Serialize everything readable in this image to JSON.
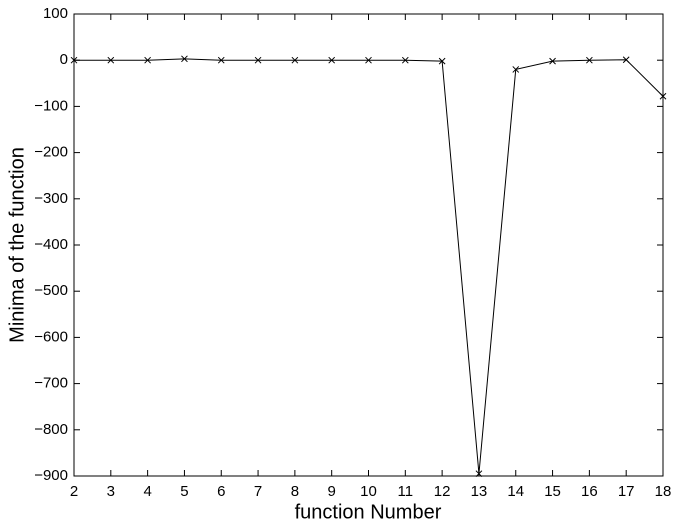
{
  "chart_data": {
    "type": "line",
    "x_label": "function Number",
    "y_label": "Minima of the function",
    "x": [
      2,
      3,
      4,
      5,
      6,
      7,
      8,
      9,
      10,
      11,
      12,
      13,
      14,
      15,
      16,
      17,
      18
    ],
    "values": [
      0,
      0,
      0,
      3,
      0,
      0,
      0,
      0,
      0,
      0,
      -2,
      -895,
      -20,
      -2,
      0,
      1,
      -78
    ],
    "color": "#000000",
    "marker": "x",
    "xlim": [
      2,
      18
    ],
    "ylim": [
      -900,
      100
    ],
    "xticks": [
      2,
      3,
      4,
      5,
      6,
      7,
      8,
      9,
      10,
      11,
      12,
      13,
      14,
      15,
      16,
      17,
      18
    ],
    "yticks": [
      {
        "value": -900,
        "label": "−900"
      },
      {
        "value": -800,
        "label": "−800"
      },
      {
        "value": -700,
        "label": "−700"
      },
      {
        "value": -600,
        "label": "−600"
      },
      {
        "value": -500,
        "label": "−500"
      },
      {
        "value": -400,
        "label": "−400"
      },
      {
        "value": -300,
        "label": "−300"
      },
      {
        "value": -200,
        "label": "−200"
      },
      {
        "value": -100,
        "label": "−100"
      },
      0,
      100
    ]
  }
}
